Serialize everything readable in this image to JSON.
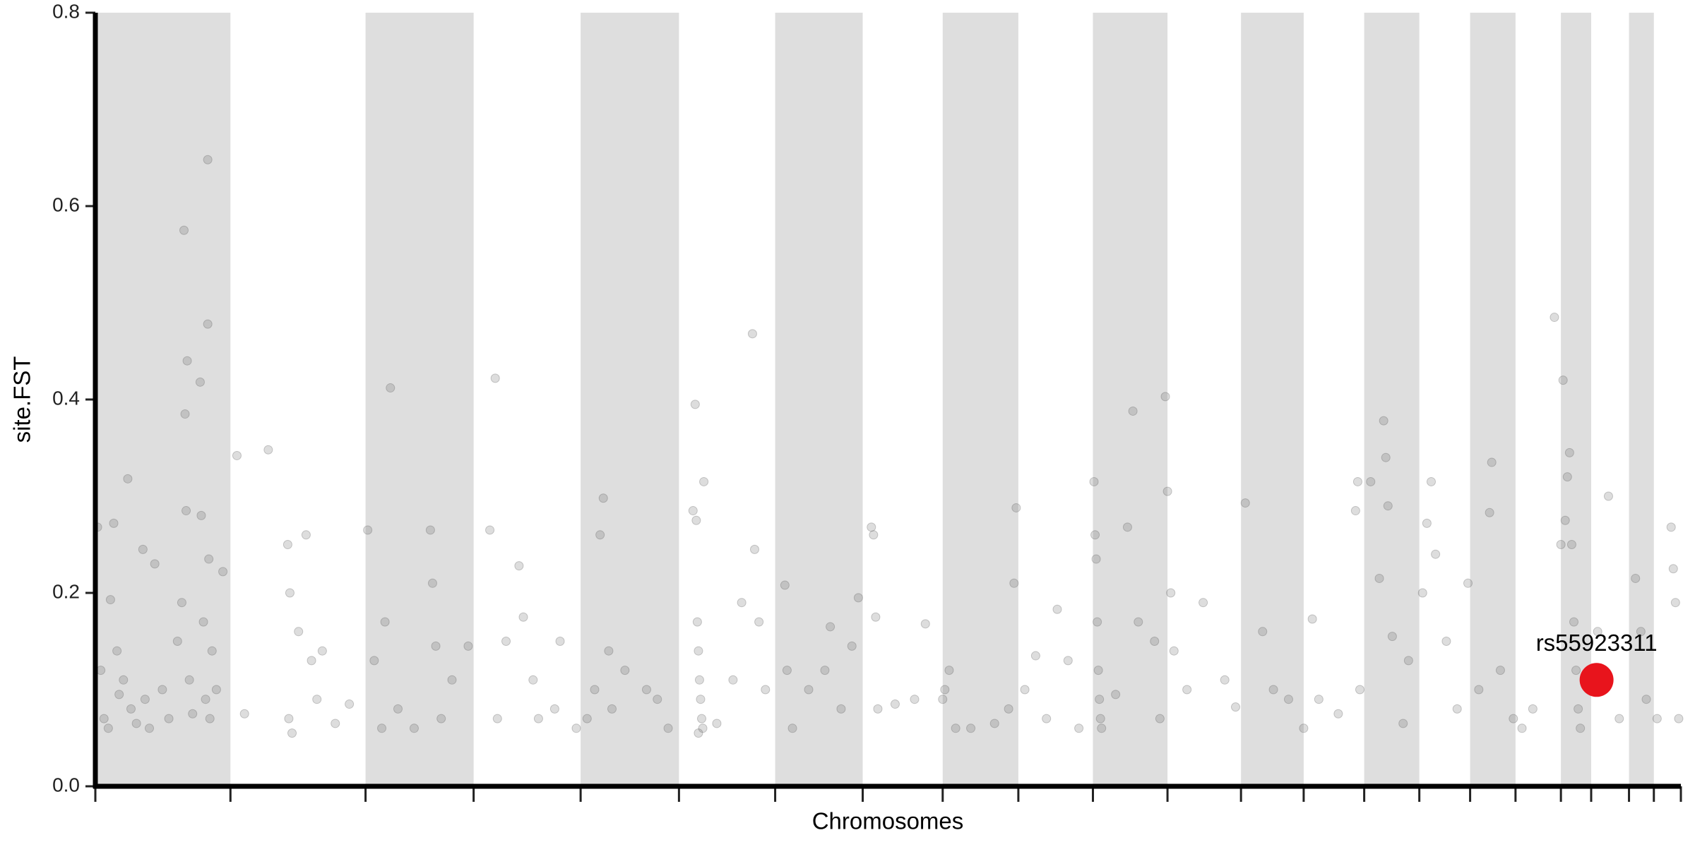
{
  "chart_data": {
    "type": "scatter",
    "x_label": "Chromosomes",
    "y_label": "site.FST",
    "xlim": [
      0,
      1467
    ],
    "ylim": [
      0,
      0.8
    ],
    "yticks": [
      {
        "value": 0,
        "label": "0.0"
      },
      0.2,
      0.4,
      0.6,
      0.8
    ],
    "chromosome_bounds": [
      0,
      125,
      250,
      350,
      449,
      540,
      629,
      710,
      784,
      854,
      923,
      992,
      1060,
      1118,
      1174,
      1225,
      1272,
      1314,
      1356,
      1384,
      1419,
      1442,
      1467
    ],
    "band_color": "#dedede",
    "color": "#555555",
    "opacity": 0.2,
    "x": [
      2,
      5,
      8,
      12,
      14,
      17,
      20,
      22,
      26,
      30,
      33,
      38,
      44,
      46,
      50,
      55,
      62,
      68,
      76,
      80,
      82,
      83,
      84,
      85,
      87,
      90,
      97,
      98,
      100,
      102,
      104,
      104,
      105,
      106,
      108,
      112,
      118,
      131,
      138,
      160,
      178,
      179,
      180,
      182,
      188,
      195,
      200,
      205,
      210,
      222,
      235,
      252,
      258,
      265,
      268,
      273,
      280,
      295,
      310,
      312,
      315,
      320,
      330,
      345,
      365,
      370,
      372,
      380,
      392,
      396,
      405,
      410,
      425,
      430,
      445,
      455,
      462,
      467,
      470,
      475,
      478,
      490,
      510,
      520,
      530,
      553,
      555,
      556,
      557,
      558,
      559,
      560,
      561,
      562,
      558,
      563,
      575,
      590,
      598,
      608,
      610,
      614,
      620,
      638,
      640,
      645,
      660,
      675,
      680,
      690,
      700,
      706,
      718,
      720,
      722,
      724,
      740,
      758,
      768,
      784,
      786,
      790,
      796,
      810,
      832,
      845,
      850,
      852,
      860,
      870,
      880,
      890,
      900,
      910,
      924,
      925,
      926,
      927,
      928,
      929,
      930,
      931,
      944,
      955,
      960,
      965,
      980,
      985,
      995,
      998,
      990,
      992,
      1010,
      1025,
      1045,
      1055,
      1064,
      1080,
      1090,
      1104,
      1118,
      1126,
      1132,
      1150,
      1166,
      1168,
      1170,
      1180,
      1188,
      1192,
      1194,
      1196,
      1200,
      1210,
      1215,
      1228,
      1232,
      1236,
      1240,
      1250,
      1260,
      1270,
      1280,
      1290,
      1292,
      1300,
      1312,
      1320,
      1330,
      1350,
      1356,
      1358,
      1360,
      1362,
      1364,
      1366,
      1368,
      1370,
      1372,
      1374,
      1390,
      1400,
      1410,
      1425,
      1430,
      1435,
      1445,
      1458,
      1460,
      1462,
      1465
    ],
    "values": [
      0.268,
      0.12,
      0.07,
      0.06,
      0.193,
      0.272,
      0.14,
      0.095,
      0.11,
      0.318,
      0.08,
      0.065,
      0.245,
      0.09,
      0.06,
      0.23,
      0.1,
      0.07,
      0.15,
      0.19,
      0.575,
      0.385,
      0.285,
      0.44,
      0.11,
      0.075,
      0.418,
      0.28,
      0.17,
      0.09,
      0.648,
      0.478,
      0.235,
      0.07,
      0.14,
      0.1,
      0.222,
      0.342,
      0.075,
      0.348,
      0.25,
      0.07,
      0.2,
      0.055,
      0.16,
      0.26,
      0.13,
      0.09,
      0.14,
      0.065,
      0.085,
      0.265,
      0.13,
      0.06,
      0.17,
      0.412,
      0.08,
      0.06,
      0.265,
      0.21,
      0.145,
      0.07,
      0.11,
      0.145,
      0.265,
      0.422,
      0.07,
      0.15,
      0.228,
      0.175,
      0.11,
      0.07,
      0.08,
      0.15,
      0.06,
      0.07,
      0.1,
      0.26,
      0.298,
      0.14,
      0.08,
      0.12,
      0.1,
      0.09,
      0.06,
      0.285,
      0.395,
      0.275,
      0.17,
      0.14,
      0.11,
      0.09,
      0.07,
      0.06,
      0.055,
      0.315,
      0.065,
      0.11,
      0.19,
      0.468,
      0.245,
      0.17,
      0.1,
      0.208,
      0.12,
      0.06,
      0.1,
      0.12,
      0.165,
      0.08,
      0.145,
      0.195,
      0.268,
      0.26,
      0.175,
      0.08,
      0.085,
      0.09,
      0.168,
      0.09,
      0.1,
      0.12,
      0.06,
      0.06,
      0.065,
      0.08,
      0.21,
      0.288,
      0.1,
      0.135,
      0.07,
      0.183,
      0.13,
      0.06,
      0.315,
      0.26,
      0.235,
      0.17,
      0.12,
      0.09,
      0.07,
      0.06,
      0.095,
      0.268,
      0.388,
      0.17,
      0.15,
      0.07,
      0.2,
      0.14,
      0.403,
      0.305,
      0.1,
      0.19,
      0.11,
      0.082,
      0.293,
      0.16,
      0.1,
      0.09,
      0.06,
      0.173,
      0.09,
      0.075,
      0.285,
      0.315,
      0.1,
      0.315,
      0.215,
      0.378,
      0.34,
      0.29,
      0.155,
      0.065,
      0.13,
      0.2,
      0.272,
      0.315,
      0.24,
      0.15,
      0.08,
      0.21,
      0.1,
      0.283,
      0.335,
      0.12,
      0.07,
      0.06,
      0.08,
      0.485,
      0.25,
      0.42,
      0.275,
      0.32,
      0.345,
      0.25,
      0.17,
      0.12,
      0.08,
      0.06,
      0.16,
      0.3,
      0.07,
      0.215,
      0.16,
      0.09,
      0.07,
      0.268,
      0.225,
      0.19,
      0.07
    ],
    "highlight": {
      "label": "rs55923311",
      "x": 1389,
      "value": 0.11,
      "color": "#e8141c"
    }
  }
}
